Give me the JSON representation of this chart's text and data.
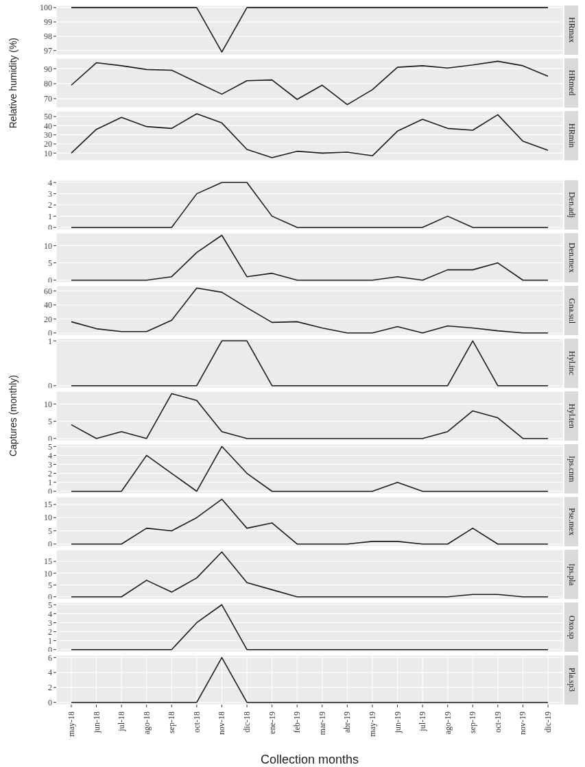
{
  "chart_data": [
    {
      "type": "line",
      "title": "HRmax",
      "categories": [
        null,
        null,
        null,
        null,
        null,
        null,
        null,
        null,
        null,
        null,
        null,
        null,
        null,
        null,
        null,
        null,
        null,
        null,
        null,
        null
      ],
      "values": [
        100,
        100,
        100,
        100,
        100,
        100,
        96.9,
        100,
        100,
        100,
        100,
        100,
        100,
        100,
        100,
        100,
        100,
        100,
        100,
        100
      ],
      "color": "#1a1a1a",
      "ylim": [
        96.7,
        100.15
      ],
      "yticks": [
        97,
        98,
        99,
        100
      ],
      "grid": true,
      "tick_labels": "y"
    },
    {
      "type": "line",
      "title": "HRmed",
      "ylabel": "Relative humidity (%)",
      "categories": [
        null,
        null,
        null,
        null,
        null,
        null,
        null,
        null,
        null,
        null,
        null,
        null,
        null,
        null,
        null,
        null,
        null,
        null,
        null,
        null
      ],
      "values": [
        79,
        94,
        92,
        89.5,
        89,
        81,
        73,
        82,
        82.5,
        69.5,
        79,
        66,
        76,
        91,
        92,
        90.5,
        92.5,
        95,
        92,
        85
      ],
      "color": "#1a1a1a",
      "ylim": [
        64,
        97
      ],
      "yticks": [
        70,
        80,
        90
      ],
      "grid": true,
      "tick_labels": "y"
    },
    {
      "type": "line",
      "title": "HRmin",
      "categories": [
        null,
        null,
        null,
        null,
        null,
        null,
        null,
        null,
        null,
        null,
        null,
        null,
        null,
        null,
        null,
        null,
        null,
        null,
        null,
        null
      ],
      "values": [
        10,
        36,
        49,
        39,
        37,
        53,
        43,
        14,
        5,
        12,
        10,
        11,
        7,
        34,
        47,
        37,
        35,
        52,
        23,
        13
      ],
      "color": "#1a1a1a",
      "ylim": [
        2,
        56
      ],
      "yticks": [
        10,
        20,
        30,
        40,
        50
      ],
      "grid": true,
      "tick_labels": "y"
    },
    {
      "type": "line",
      "title": "Den.adj",
      "categories": [
        null,
        null,
        null,
        null,
        null,
        null,
        null,
        null,
        null,
        null,
        null,
        null,
        null,
        null,
        null,
        null,
        null,
        null,
        null,
        null
      ],
      "values": [
        0,
        0,
        0,
        0,
        0,
        3,
        4,
        4,
        1,
        0,
        0,
        0,
        0,
        0,
        0,
        1,
        0,
        0,
        0,
        0
      ],
      "color": "#1a1a1a",
      "ylim": [
        -0.2,
        4.2
      ],
      "yticks": [
        0,
        1,
        2,
        3,
        4
      ],
      "grid": true,
      "tick_labels": "y"
    },
    {
      "type": "line",
      "title": "Den.mex",
      "categories": [
        null,
        null,
        null,
        null,
        null,
        null,
        null,
        null,
        null,
        null,
        null,
        null,
        null,
        null,
        null,
        null,
        null,
        null,
        null,
        null
      ],
      "values": [
        0,
        0,
        0,
        0,
        1,
        8,
        13,
        1,
        2,
        0,
        0,
        0,
        0,
        1,
        0,
        3,
        3,
        5,
        0,
        0
      ],
      "color": "#1a1a1a",
      "ylim": [
        -0.65,
        13.65
      ],
      "yticks": [
        0,
        5,
        10
      ],
      "grid": true,
      "tick_labels": "y"
    },
    {
      "type": "line",
      "title": "Gna.sul",
      "categories": [
        null,
        null,
        null,
        null,
        null,
        null,
        null,
        null,
        null,
        null,
        null,
        null,
        null,
        null,
        null,
        null,
        null,
        null,
        null,
        null
      ],
      "values": [
        16,
        6,
        2,
        2,
        18,
        64,
        58,
        36,
        15,
        16,
        7,
        0,
        0,
        9,
        0,
        10,
        7,
        3,
        0,
        0
      ],
      "color": "#1a1a1a",
      "ylim": [
        -3.2,
        67.2
      ],
      "yticks": [
        0,
        20,
        40,
        60
      ],
      "grid": true,
      "tick_labels": "y"
    },
    {
      "type": "line",
      "title": "Hyl.inc",
      "categories": [
        null,
        null,
        null,
        null,
        null,
        null,
        null,
        null,
        null,
        null,
        null,
        null,
        null,
        null,
        null,
        null,
        null,
        null,
        null,
        null
      ],
      "values": [
        0,
        0,
        0,
        0,
        0,
        0,
        1,
        1,
        0,
        0,
        0,
        0,
        0,
        0,
        0,
        0,
        1,
        0,
        0,
        0
      ],
      "color": "#1a1a1a",
      "ylim": [
        -0.05,
        1.05
      ],
      "yticks": [
        0,
        1
      ],
      "grid": true,
      "tick_labels": "y"
    },
    {
      "type": "line",
      "title": "Hyl.ten",
      "ylabel": "Captures (monthly)",
      "categories": [
        null,
        null,
        null,
        null,
        null,
        null,
        null,
        null,
        null,
        null,
        null,
        null,
        null,
        null,
        null,
        null,
        null,
        null,
        null,
        null
      ],
      "values": [
        4,
        0,
        2,
        0,
        13,
        11,
        2,
        0,
        0,
        0,
        0,
        0,
        0,
        0,
        0,
        2,
        8,
        6,
        0,
        0
      ],
      "color": "#1a1a1a",
      "ylim": [
        -0.65,
        13.65
      ],
      "yticks": [
        0,
        5,
        10
      ],
      "grid": true,
      "tick_labels": "y"
    },
    {
      "type": "line",
      "title": "Ips.cnm",
      "categories": [
        null,
        null,
        null,
        null,
        null,
        null,
        null,
        null,
        null,
        null,
        null,
        null,
        null,
        null,
        null,
        null,
        null,
        null,
        null,
        null
      ],
      "values": [
        0,
        0,
        0,
        4,
        2,
        0,
        5,
        2,
        0,
        0,
        0,
        0,
        0,
        1,
        0,
        0,
        0,
        0,
        0,
        0
      ],
      "color": "#1a1a1a",
      "ylim": [
        -0.25,
        5.25
      ],
      "yticks": [
        0,
        1,
        2,
        3,
        4,
        5
      ],
      "grid": true,
      "tick_labels": "y"
    },
    {
      "type": "line",
      "title": "Pse.mex",
      "categories": [
        null,
        null,
        null,
        null,
        null,
        null,
        null,
        null,
        null,
        null,
        null,
        null,
        null,
        null,
        null,
        null,
        null,
        null,
        null,
        null
      ],
      "values": [
        0,
        0,
        0,
        6,
        5,
        10,
        17,
        6,
        8,
        0,
        0,
        0,
        1,
        1,
        0,
        0,
        6,
        0,
        0,
        0
      ],
      "color": "#1a1a1a",
      "ylim": [
        -0.85,
        17.85
      ],
      "yticks": [
        0,
        5,
        10,
        15
      ],
      "grid": true,
      "tick_labels": "y"
    },
    {
      "type": "line",
      "title": "Ips.pla",
      "categories": [
        null,
        null,
        null,
        null,
        null,
        null,
        null,
        null,
        null,
        null,
        null,
        null,
        null,
        null,
        null,
        null,
        null,
        null,
        null,
        null
      ],
      "values": [
        0,
        0,
        0,
        7,
        2,
        8,
        19,
        6,
        3,
        0,
        0,
        0,
        0,
        0,
        0,
        0,
        1,
        1,
        0,
        0
      ],
      "color": "#1a1a1a",
      "ylim": [
        -0.95,
        19.95
      ],
      "yticks": [
        0,
        5,
        10,
        15
      ],
      "grid": true,
      "tick_labels": "y"
    },
    {
      "type": "line",
      "title": "Oxo.sp",
      "categories": [
        null,
        null,
        null,
        null,
        null,
        null,
        null,
        null,
        null,
        null,
        null,
        null,
        null,
        null,
        null,
        null,
        null,
        null,
        null,
        null
      ],
      "values": [
        0,
        0,
        0,
        0,
        0,
        3,
        5,
        0,
        0,
        0,
        0,
        0,
        0,
        0,
        0,
        0,
        0,
        0,
        0,
        0
      ],
      "color": "#1a1a1a",
      "ylim": [
        -0.25,
        5.25
      ],
      "yticks": [
        0,
        1,
        2,
        3,
        4,
        5
      ],
      "grid": true,
      "tick_labels": "y"
    },
    {
      "type": "line",
      "title": "Pla.sp3",
      "xlabel": "Collection months",
      "categories": [
        "may-18",
        "jun-18",
        "jul-18",
        "ago-18",
        "sep-18",
        "oct-18",
        "nov-18",
        "dic-18",
        "ene-19",
        "feb-19",
        "mar-19",
        "abr-19",
        "may-19",
        "jun-19",
        "jul-19",
        "ago-19",
        "sep-19",
        "oct-19",
        "nov-19",
        "dic-19"
      ],
      "values": [
        0,
        0,
        0,
        0,
        0,
        0,
        6,
        0,
        0,
        0,
        0,
        0,
        0,
        0,
        0,
        0,
        0,
        0,
        0,
        0
      ],
      "color": "#1a1a1a",
      "ylim": [
        -0.3,
        6.3
      ],
      "yticks": [
        0,
        2,
        4,
        6
      ],
      "grid": true
    }
  ]
}
